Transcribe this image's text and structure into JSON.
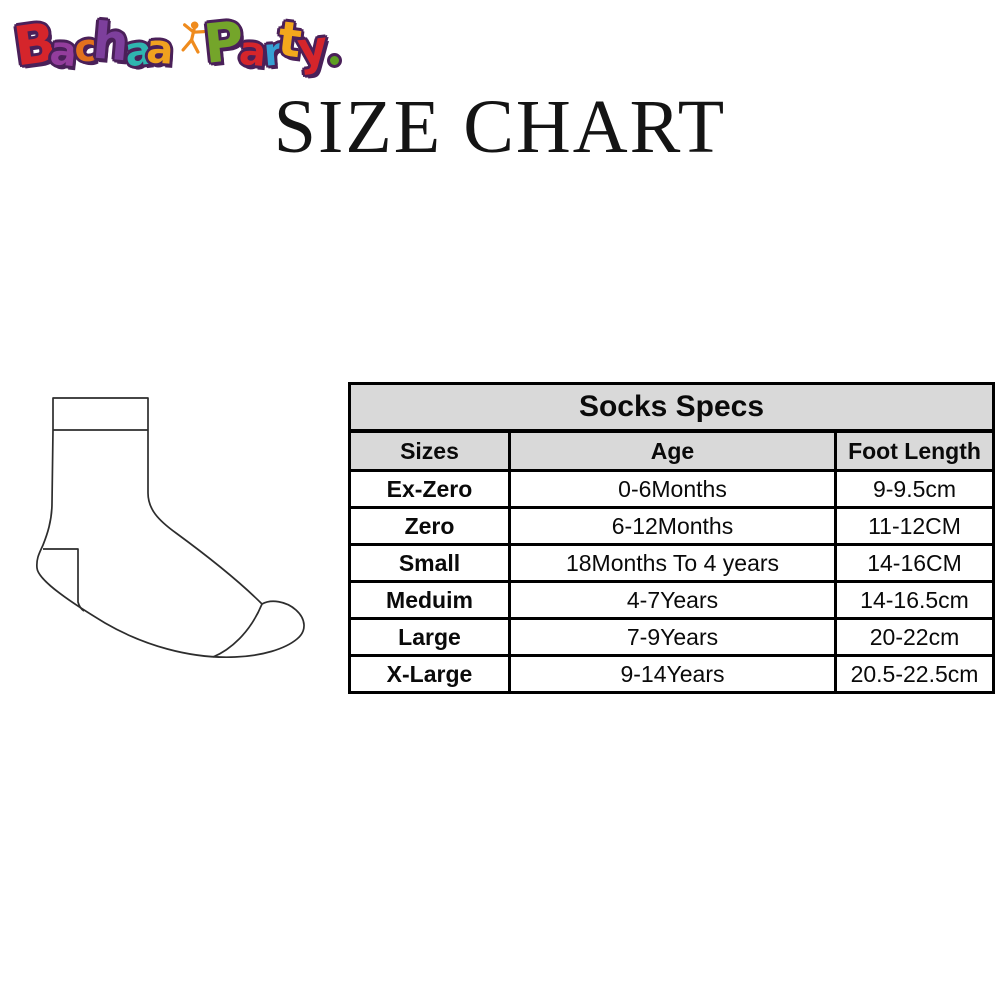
{
  "logo": {
    "name": "Bachaa Party",
    "letters": [
      {
        "ch": "B",
        "color": "#d5252b"
      },
      {
        "ch": "a",
        "color": "#933d9c"
      },
      {
        "ch": "c",
        "color": "#e2711d"
      },
      {
        "ch": "h",
        "color": "#7d3f9c"
      },
      {
        "ch": "a",
        "color": "#2fb5b0"
      },
      {
        "ch": "a",
        "color": "#f0a21f"
      },
      {
        "ch": " ",
        "color": ""
      },
      {
        "ch": "P",
        "color": "#74a52a"
      },
      {
        "ch": "a",
        "color": "#d5252b"
      },
      {
        "ch": "r",
        "color": "#36a0d4"
      },
      {
        "ch": "t",
        "color": "#f3a81c"
      },
      {
        "ch": "y",
        "color": "#d5252b"
      }
    ],
    "dot_color": "#5d9e22",
    "outline_color": "#4a2059",
    "dancer_color": "#ef8b1d"
  },
  "title": "SIZE CHART",
  "sock": {
    "stroke_color": "#2d2d2d"
  },
  "table": {
    "title": "Socks Specs",
    "columns": [
      "Sizes",
      "Age",
      "Foot Length"
    ],
    "rows": [
      [
        "Ex-Zero",
        "0-6Months",
        "9-9.5cm"
      ],
      [
        "Zero",
        "6-12Months",
        "11-12CM"
      ],
      [
        "Small",
        "18Months To 4 years",
        "14-16CM"
      ],
      [
        "Meduim",
        "4-7Years",
        "14-16.5cm"
      ],
      [
        "Large",
        "7-9Years",
        "20-22cm"
      ],
      [
        "X-Large",
        "9-14Years",
        "20.5-22.5cm"
      ]
    ],
    "header_bg": "#d9d9d9",
    "border_color": "#000000"
  }
}
